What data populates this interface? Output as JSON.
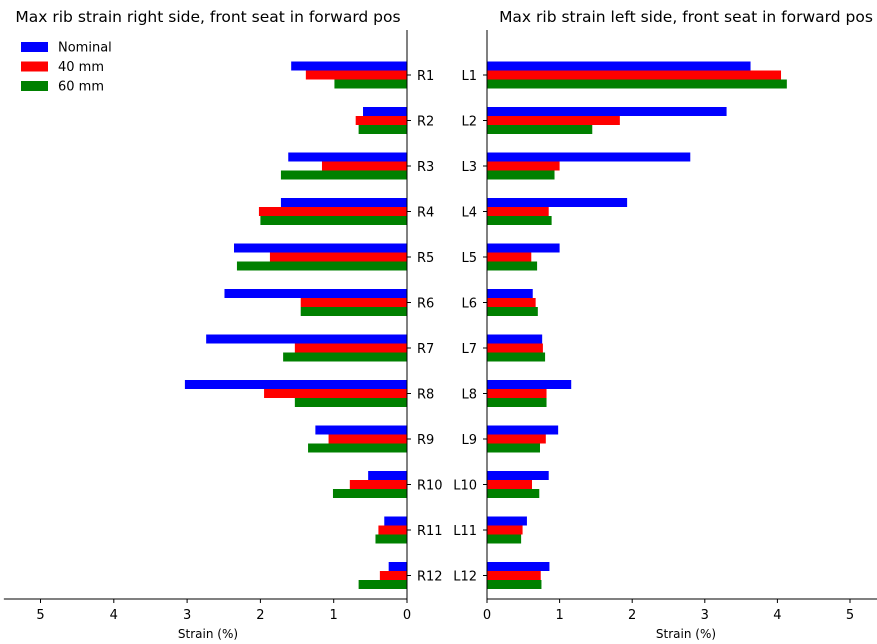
{
  "chart_data": [
    {
      "type": "bar",
      "orientation": "horizontal",
      "title": "Max rib strain right side, front seat in forward pos",
      "xlabel": "Strain (%)",
      "ylabel": "",
      "xlim": [
        0,
        5.5
      ],
      "x_inverted": true,
      "xticks": [
        5,
        4,
        3,
        2,
        1,
        0
      ],
      "categories": [
        "R1",
        "R2",
        "R3",
        "R4",
        "R5",
        "R6",
        "R7",
        "R8",
        "R9",
        "R10",
        "R11",
        "R12"
      ],
      "legend": "top-left",
      "series": [
        {
          "name": "Nominal",
          "color": "#0000ff",
          "values": [
            1.58,
            0.6,
            1.62,
            1.72,
            2.36,
            2.49,
            2.74,
            3.03,
            1.25,
            0.53,
            0.31,
            0.25
          ]
        },
        {
          "name": "40 mm",
          "color": "#ff0000",
          "values": [
            1.38,
            0.7,
            1.16,
            2.02,
            1.87,
            1.45,
            1.53,
            1.95,
            1.07,
            0.78,
            0.39,
            0.37
          ]
        },
        {
          "name": "60 mm",
          "color": "#008000",
          "values": [
            0.99,
            0.66,
            1.72,
            2.0,
            2.32,
            1.45,
            1.69,
            1.53,
            1.35,
            1.01,
            0.43,
            0.66
          ]
        }
      ]
    },
    {
      "type": "bar",
      "orientation": "horizontal",
      "title": "Max rib strain left side, front seat in forward pos",
      "xlabel": "Strain (%)",
      "ylabel": "",
      "xlim": [
        0,
        5.5
      ],
      "xticks": [
        0,
        1,
        2,
        3,
        4,
        5
      ],
      "categories": [
        "L1",
        "L2",
        "L3",
        "L4",
        "L5",
        "L6",
        "L7",
        "L8",
        "L9",
        "L10",
        "L11",
        "L12"
      ],
      "series": [
        {
          "name": "Nominal",
          "color": "#0000ff",
          "values": [
            3.63,
            3.3,
            2.8,
            1.93,
            1.0,
            0.63,
            0.76,
            1.16,
            0.98,
            0.85,
            0.55,
            0.86
          ]
        },
        {
          "name": "40 mm",
          "color": "#ff0000",
          "values": [
            4.05,
            1.83,
            1.0,
            0.85,
            0.61,
            0.67,
            0.77,
            0.82,
            0.81,
            0.62,
            0.49,
            0.74
          ]
        },
        {
          "name": "60 mm",
          "color": "#008000",
          "values": [
            4.13,
            1.45,
            0.93,
            0.89,
            0.69,
            0.7,
            0.8,
            0.82,
            0.73,
            0.72,
            0.47,
            0.75
          ]
        }
      ]
    }
  ]
}
